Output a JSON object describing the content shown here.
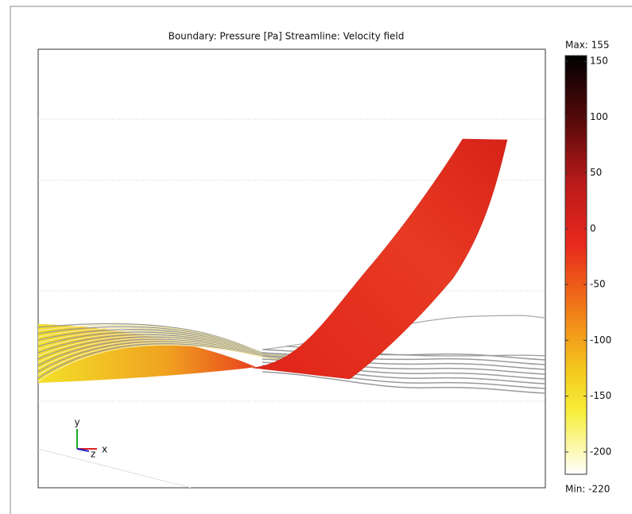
{
  "chart_data": {
    "type": "colorbar",
    "title": "Boundary: Pressure [Pa]   Streamline: Velocity field",
    "max_label": "Max: 155",
    "min_label": "Min: -220",
    "clim": [
      -220,
      155
    ],
    "cticks": [
      150,
      100,
      50,
      0,
      -50,
      -100,
      -150,
      -200
    ],
    "axis_labels": {
      "x": "x",
      "y": "y",
      "z": "z"
    }
  }
}
